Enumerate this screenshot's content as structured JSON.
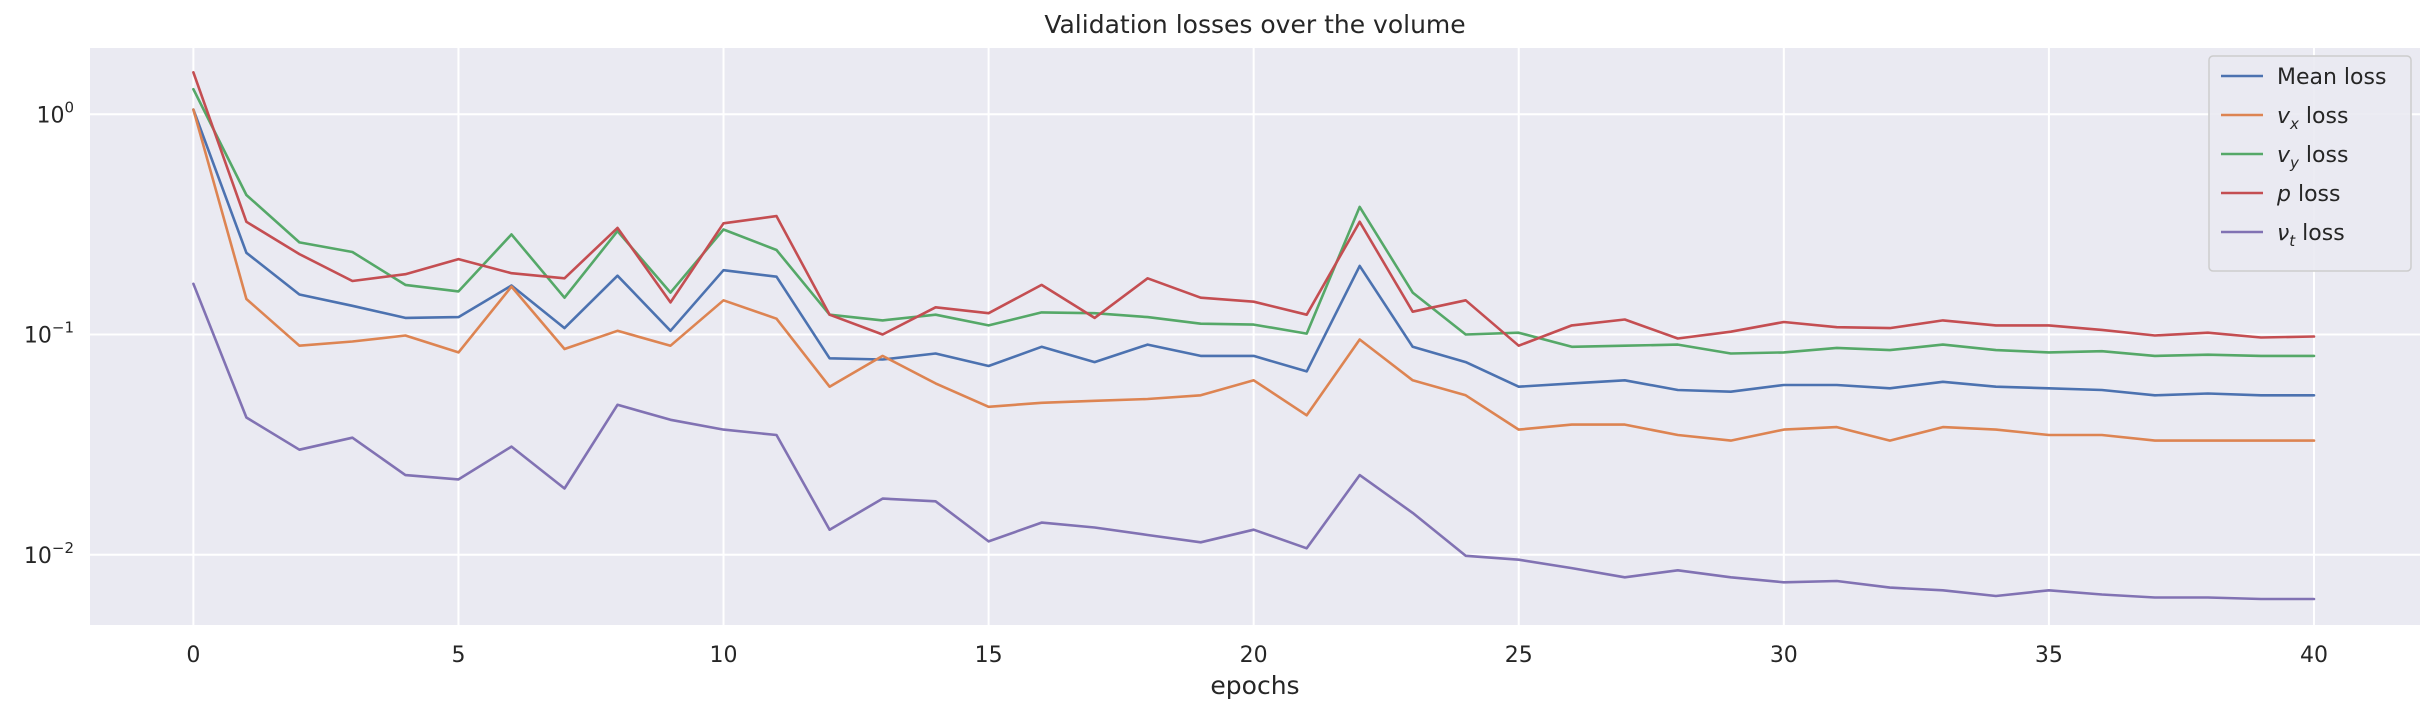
{
  "chart_data": {
    "type": "line",
    "title": "Validation losses over the volume",
    "xlabel": "epochs",
    "ylabel": "",
    "yscale": "log",
    "xlim": [
      -1.95,
      42.0
    ],
    "ylim": [
      0.0048,
      2.0
    ],
    "xticks": [
      0,
      5,
      10,
      15,
      20,
      25,
      30,
      35,
      40
    ],
    "xtick_labels": [
      "0",
      "5",
      "10",
      "15",
      "20",
      "25",
      "30",
      "35",
      "40"
    ],
    "yticks": [
      0.01,
      0.1,
      1
    ],
    "ytick_labels": [
      {
        "base": "10",
        "exp": "−2"
      },
      {
        "base": "10",
        "exp": "−1"
      },
      {
        "base": "10",
        "exp": "0"
      }
    ],
    "grid": true,
    "legend_position": "top-right",
    "x": [
      0,
      1,
      2,
      3,
      4,
      5,
      6,
      7,
      8,
      9,
      10,
      11,
      12,
      13,
      14,
      15,
      16,
      17,
      18,
      19,
      20,
      21,
      22,
      23,
      24,
      25,
      26,
      27,
      28,
      29,
      30,
      31,
      32,
      33,
      34,
      35,
      36,
      37,
      38,
      39,
      40
    ],
    "series": [
      {
        "name": "Mean loss",
        "legend": {
          "pre": "Mean loss",
          "sym": "",
          "sub": "",
          "post": ""
        },
        "color": "#4c72b0",
        "values": [
          1.05,
          0.235,
          0.152,
          0.135,
          0.119,
          0.12,
          0.167,
          0.107,
          0.185,
          0.104,
          0.196,
          0.183,
          0.078,
          0.077,
          0.082,
          0.072,
          0.088,
          0.075,
          0.09,
          0.08,
          0.08,
          0.068,
          0.205,
          0.088,
          0.075,
          0.058,
          0.06,
          0.062,
          0.056,
          0.055,
          0.059,
          0.059,
          0.057,
          0.061,
          0.058,
          0.057,
          0.056,
          0.053,
          0.054,
          0.053,
          0.053
        ]
      },
      {
        "name": "v_x loss",
        "legend": {
          "pre": "",
          "sym": "v",
          "sub": "x",
          "post": " loss"
        },
        "color": "#dd8452",
        "values": [
          1.05,
          0.145,
          0.089,
          0.093,
          0.099,
          0.083,
          0.165,
          0.086,
          0.104,
          0.089,
          0.143,
          0.118,
          0.058,
          0.08,
          0.06,
          0.047,
          0.049,
          0.05,
          0.051,
          0.053,
          0.062,
          0.043,
          0.095,
          0.062,
          0.053,
          0.037,
          0.039,
          0.039,
          0.035,
          0.033,
          0.037,
          0.038,
          0.033,
          0.038,
          0.037,
          0.035,
          0.035,
          0.033,
          0.033,
          0.033,
          0.033
        ]
      },
      {
        "name": "v_y loss",
        "legend": {
          "pre": "",
          "sym": "v",
          "sub": "y",
          "post": " loss"
        },
        "color": "#55a868",
        "values": [
          1.3,
          0.43,
          0.262,
          0.237,
          0.168,
          0.157,
          0.285,
          0.147,
          0.295,
          0.155,
          0.3,
          0.242,
          0.123,
          0.116,
          0.123,
          0.11,
          0.126,
          0.125,
          0.12,
          0.112,
          0.111,
          0.101,
          0.38,
          0.155,
          0.1,
          0.102,
          0.088,
          0.089,
          0.09,
          0.082,
          0.083,
          0.087,
          0.085,
          0.09,
          0.085,
          0.083,
          0.084,
          0.08,
          0.081,
          0.08,
          0.08
        ]
      },
      {
        "name": "p loss",
        "legend": {
          "pre": "",
          "sym": "p",
          "sub": "",
          "post": " loss"
        },
        "color": "#c44e52",
        "values": [
          1.55,
          0.325,
          0.232,
          0.175,
          0.188,
          0.22,
          0.19,
          0.18,
          0.305,
          0.14,
          0.32,
          0.345,
          0.123,
          0.1,
          0.133,
          0.125,
          0.168,
          0.119,
          0.18,
          0.147,
          0.141,
          0.123,
          0.325,
          0.127,
          0.143,
          0.089,
          0.11,
          0.117,
          0.096,
          0.103,
          0.114,
          0.108,
          0.107,
          0.116,
          0.11,
          0.11,
          0.105,
          0.099,
          0.102,
          0.097,
          0.098
        ]
      },
      {
        "name": "ν_t loss",
        "legend": {
          "pre": "",
          "sym": "ν",
          "sub": "t",
          "post": " loss"
        },
        "color": "#8172b3",
        "values": [
          0.17,
          0.042,
          0.03,
          0.034,
          0.023,
          0.022,
          0.031,
          0.02,
          0.048,
          0.041,
          0.037,
          0.035,
          0.013,
          0.018,
          0.0175,
          0.0115,
          0.014,
          0.0133,
          0.0123,
          0.0114,
          0.013,
          0.0107,
          0.023,
          0.0155,
          0.0099,
          0.0095,
          0.0087,
          0.0079,
          0.0085,
          0.0079,
          0.0075,
          0.0076,
          0.0071,
          0.0069,
          0.0065,
          0.0069,
          0.0066,
          0.0064,
          0.0064,
          0.0063,
          0.0063
        ]
      }
    ]
  }
}
